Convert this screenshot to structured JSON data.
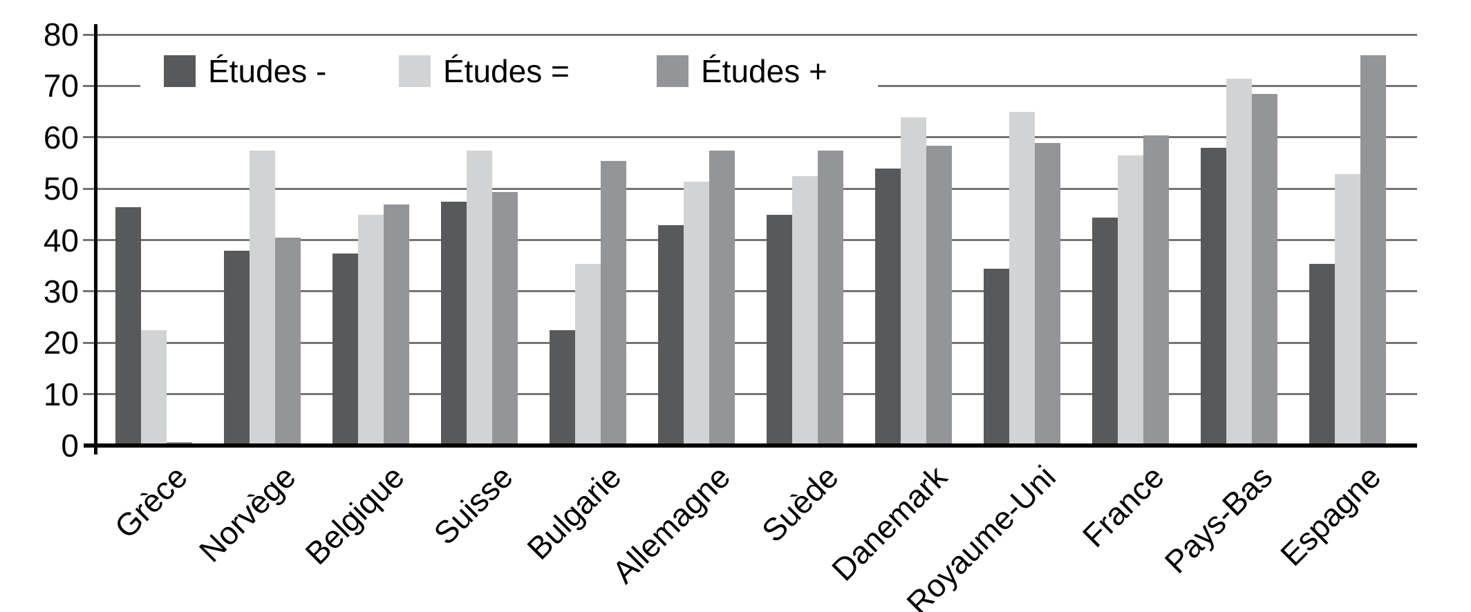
{
  "chart_data": {
    "type": "bar",
    "title": "",
    "xlabel": "",
    "ylabel": "",
    "categories": [
      "Grèce",
      "Norvège",
      "Belgique",
      "Suisse",
      "Bulgarie",
      "Allemagne",
      "Suède",
      "Danemark",
      "Royaume-Uni",
      "France",
      "Pays-Bas",
      "Espagne"
    ],
    "series": [
      {
        "name": "Études -",
        "color": "#58595B",
        "values": [
          46,
          37.5,
          37,
          47,
          22,
          42.5,
          44.5,
          53.5,
          34,
          44,
          57.5,
          35
        ]
      },
      {
        "name": "Études =",
        "color": "#D1D3D4",
        "values": [
          22,
          57,
          44.5,
          57,
          35,
          51,
          52,
          63.5,
          64.5,
          56,
          71,
          52.5
        ]
      },
      {
        "name": "Études +",
        "color": "#939598",
        "values": [
          0.3,
          40,
          46.5,
          49,
          55,
          57,
          57,
          58,
          58.5,
          60,
          68,
          75.5
        ]
      }
    ],
    "ylim": [
      0,
      80
    ],
    "yticks": [
      0,
      10,
      20,
      30,
      40,
      50,
      60,
      70,
      80
    ],
    "grid": "horizontal",
    "legend_position": "top-left"
  },
  "colors": {
    "gridline": "#737477",
    "axis": "#000000",
    "background": "#FFFFFF",
    "text": "#000000"
  }
}
